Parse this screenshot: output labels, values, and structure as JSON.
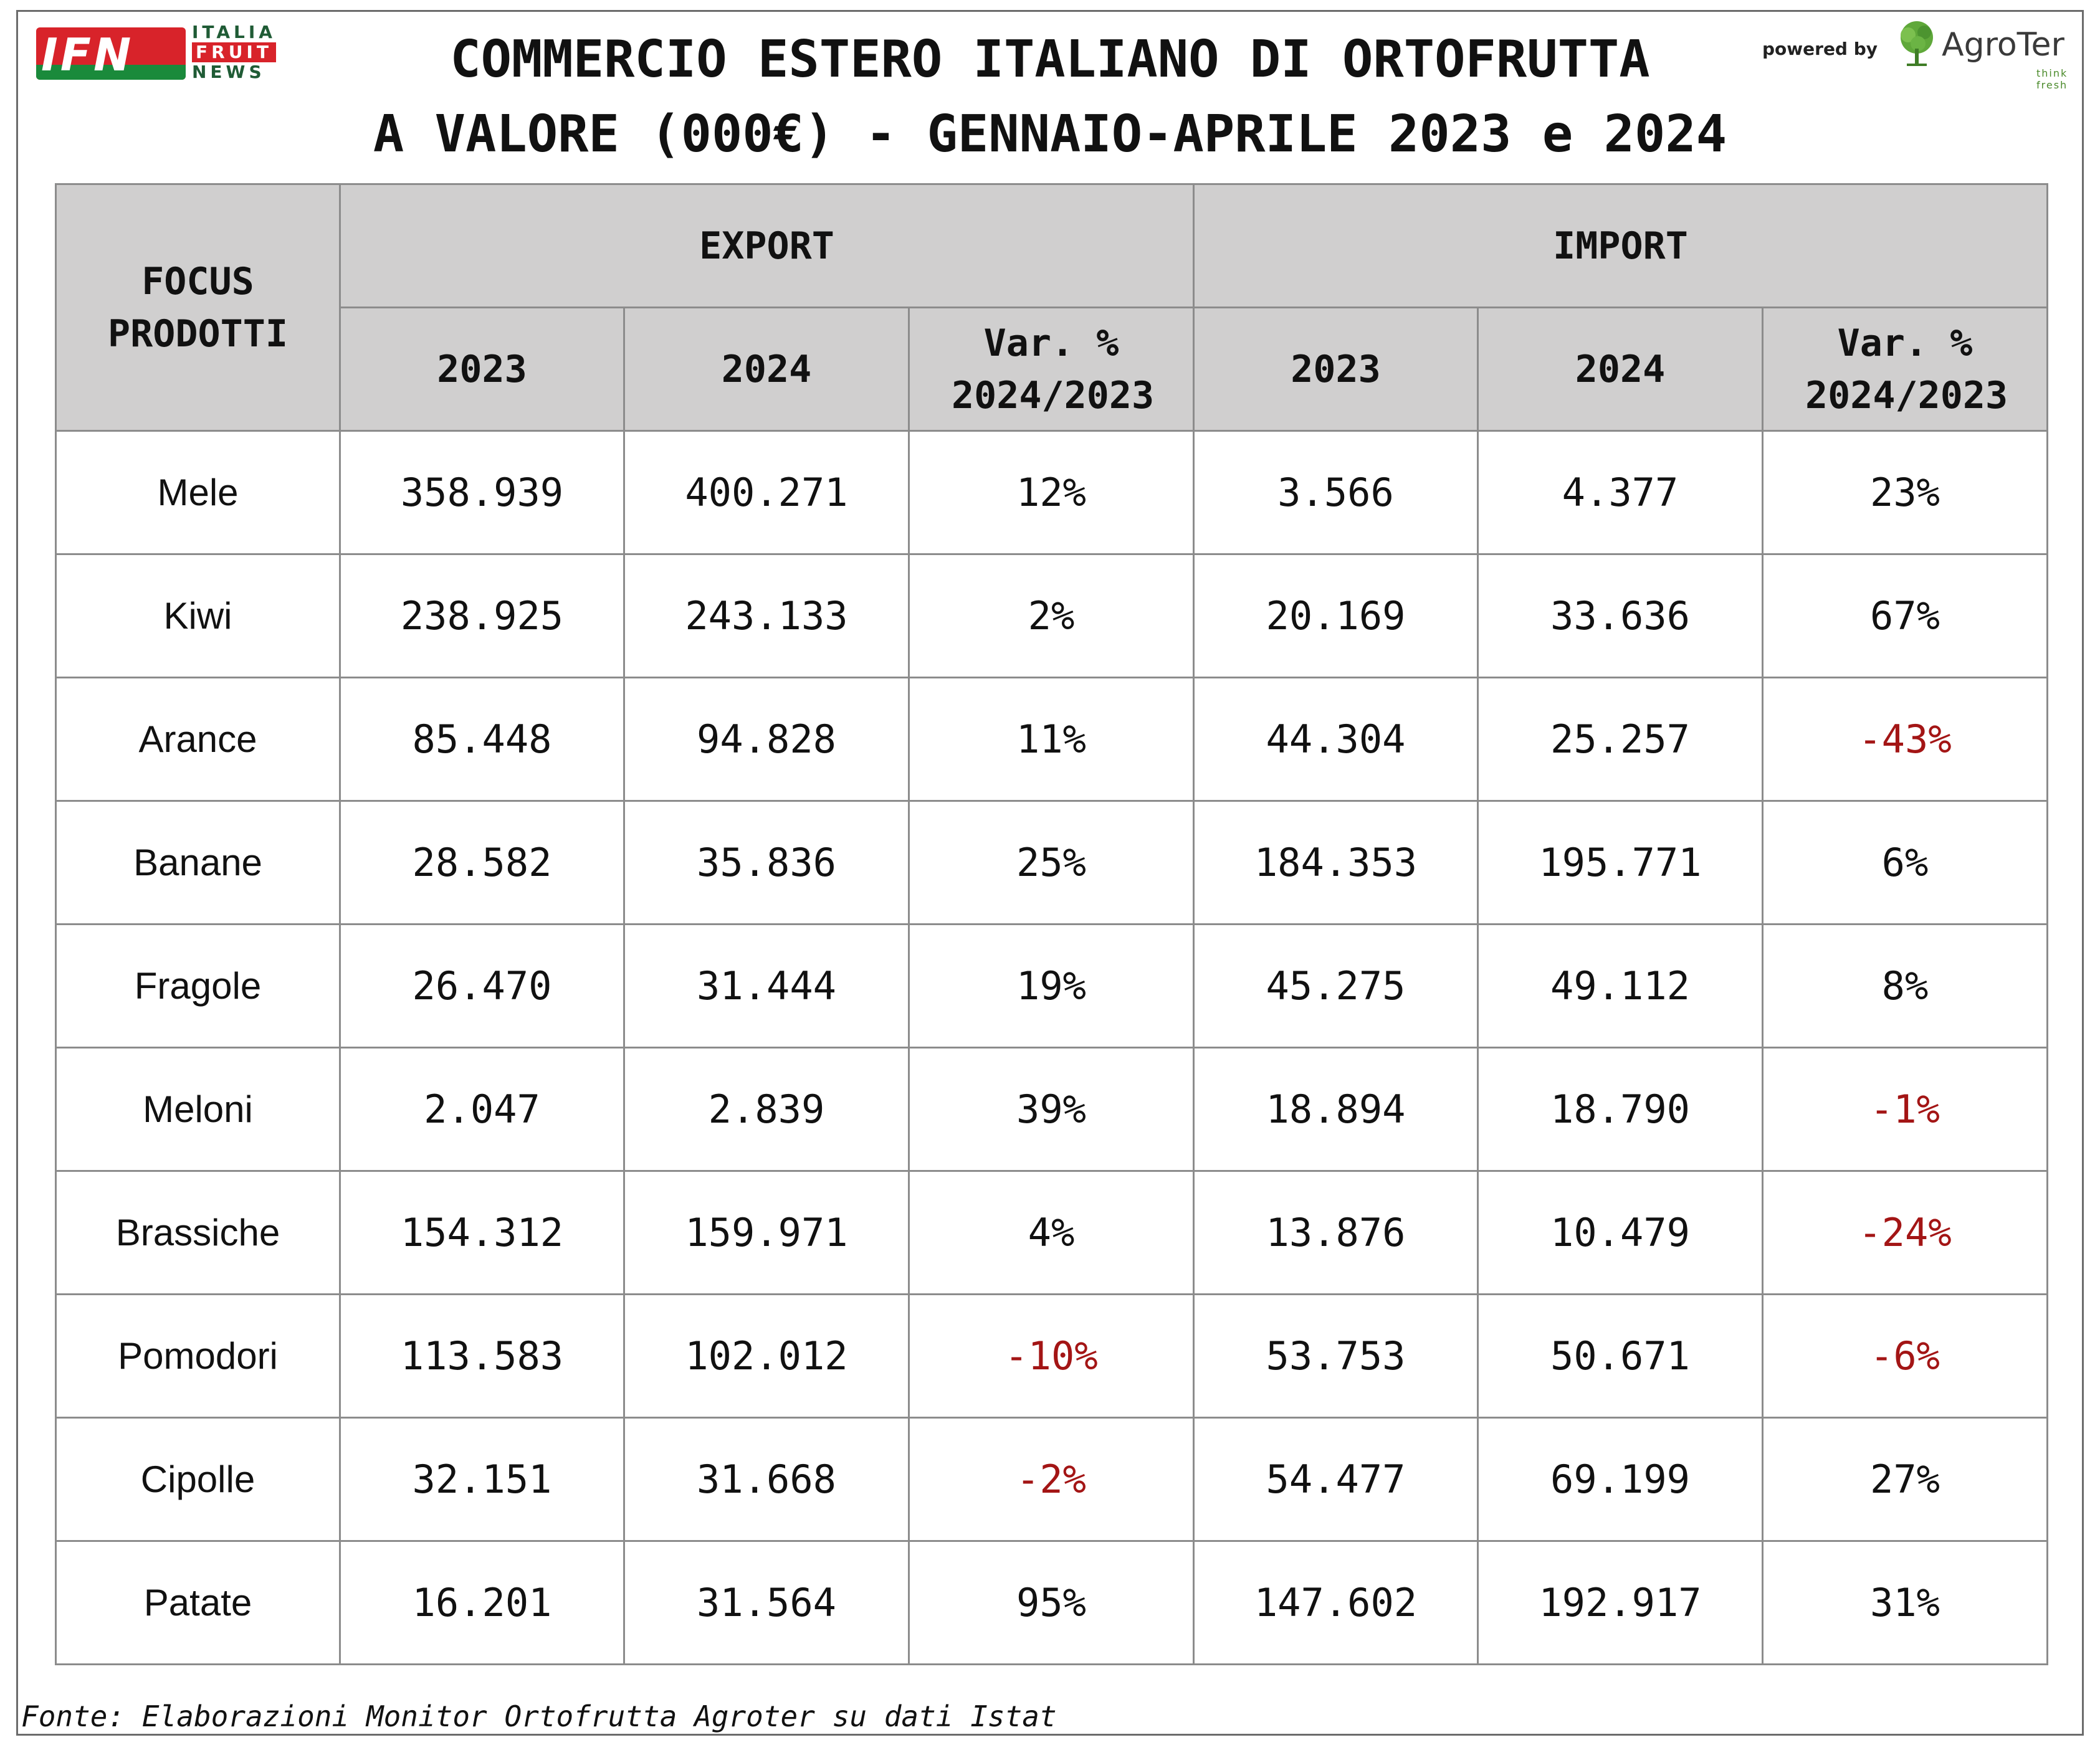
{
  "header": {
    "ifn_logo": {
      "letters": "IFN",
      "line1": "ITALIA",
      "line2": "FRUIT",
      "line3": "NEWS"
    },
    "powered_by": "powered by",
    "agroter_logo": {
      "name": "AgroTer",
      "tagline": "think fresh"
    },
    "title_line1": "COMMERCIO ESTERO ITALIANO DI ORTOFRUTTA",
    "title_line2": "A VALORE (000€) - GENNAIO-APRILE 2023 e 2024"
  },
  "table": {
    "focus_header": "FOCUS PRODOTTI",
    "export_header": "EXPORT",
    "import_header": "IMPORT",
    "sub_headers": [
      "2023",
      "2024",
      "Var. % 2024/2023",
      "2023",
      "2024",
      "Var. % 2024/2023"
    ],
    "rows": [
      {
        "product": "Mele",
        "exp_2023": "358.939",
        "exp_2024": "400.271",
        "exp_var": "12%",
        "imp_2023": "3.566",
        "imp_2024": "4.377",
        "imp_var": "23%"
      },
      {
        "product": "Kiwi",
        "exp_2023": "238.925",
        "exp_2024": "243.133",
        "exp_var": "2%",
        "imp_2023": "20.169",
        "imp_2024": "33.636",
        "imp_var": "67%"
      },
      {
        "product": "Arance",
        "exp_2023": "85.448",
        "exp_2024": "94.828",
        "exp_var": "11%",
        "imp_2023": "44.304",
        "imp_2024": "25.257",
        "imp_var": "-43%"
      },
      {
        "product": "Banane",
        "exp_2023": "28.582",
        "exp_2024": "35.836",
        "exp_var": "25%",
        "imp_2023": "184.353",
        "imp_2024": "195.771",
        "imp_var": "6%"
      },
      {
        "product": "Fragole",
        "exp_2023": "26.470",
        "exp_2024": "31.444",
        "exp_var": "19%",
        "imp_2023": "45.275",
        "imp_2024": "49.112",
        "imp_var": "8%"
      },
      {
        "product": "Meloni",
        "exp_2023": "2.047",
        "exp_2024": "2.839",
        "exp_var": "39%",
        "imp_2023": "18.894",
        "imp_2024": "18.790",
        "imp_var": "-1%"
      },
      {
        "product": "Brassiche",
        "exp_2023": "154.312",
        "exp_2024": "159.971",
        "exp_var": "4%",
        "imp_2023": "13.876",
        "imp_2024": "10.479",
        "imp_var": "-24%"
      },
      {
        "product": "Pomodori",
        "exp_2023": "113.583",
        "exp_2024": "102.012",
        "exp_var": "-10%",
        "imp_2023": "53.753",
        "imp_2024": "50.671",
        "imp_var": "-6%"
      },
      {
        "product": "Cipolle",
        "exp_2023": "32.151",
        "exp_2024": "31.668",
        "exp_var": "-2%",
        "imp_2023": "54.477",
        "imp_2024": "69.199",
        "imp_var": "27%"
      },
      {
        "product": "Patate",
        "exp_2023": "16.201",
        "exp_2024": "31.564",
        "exp_var": "95%",
        "imp_2023": "147.602",
        "imp_2024": "192.917",
        "imp_var": "31%"
      }
    ]
  },
  "footer": {
    "source": "Fonte: Elaborazioni Monitor Ortofrutta Agroter su dati Istat"
  },
  "colors": {
    "negative": "#a31515",
    "header_bg": "#d0cfcf",
    "ifn_red": "#d8232a",
    "ifn_green": "#1a8a3b"
  },
  "chart_data": {
    "type": "table",
    "title": "COMMERCIO ESTERO ITALIANO DI ORTOFRUTTA A VALORE (000€) - GENNAIO-APRILE 2023 e 2024",
    "columns": [
      "FOCUS PRODOTTI",
      "EXPORT 2023",
      "EXPORT 2024",
      "EXPORT Var. % 2024/2023",
      "IMPORT 2023",
      "IMPORT 2024",
      "IMPORT Var. % 2024/2023"
    ],
    "rows": [
      [
        "Mele",
        358939,
        400271,
        12,
        3566,
        4377,
        23
      ],
      [
        "Kiwi",
        238925,
        243133,
        2,
        20169,
        33636,
        67
      ],
      [
        "Arance",
        85448,
        94828,
        11,
        44304,
        25257,
        -43
      ],
      [
        "Banane",
        28582,
        35836,
        25,
        184353,
        195771,
        6
      ],
      [
        "Fragole",
        26470,
        31444,
        19,
        45275,
        49112,
        8
      ],
      [
        "Meloni",
        2047,
        2839,
        39,
        18894,
        18790,
        -1
      ],
      [
        "Brassiche",
        154312,
        159971,
        4,
        13876,
        10479,
        -24
      ],
      [
        "Pomodori",
        113583,
        102012,
        -10,
        53753,
        50671,
        -6
      ],
      [
        "Cipolle",
        32151,
        31668,
        -2,
        54477,
        69199,
        27
      ],
      [
        "Patate",
        16201,
        31564,
        95,
        147602,
        192917,
        31
      ]
    ]
  }
}
